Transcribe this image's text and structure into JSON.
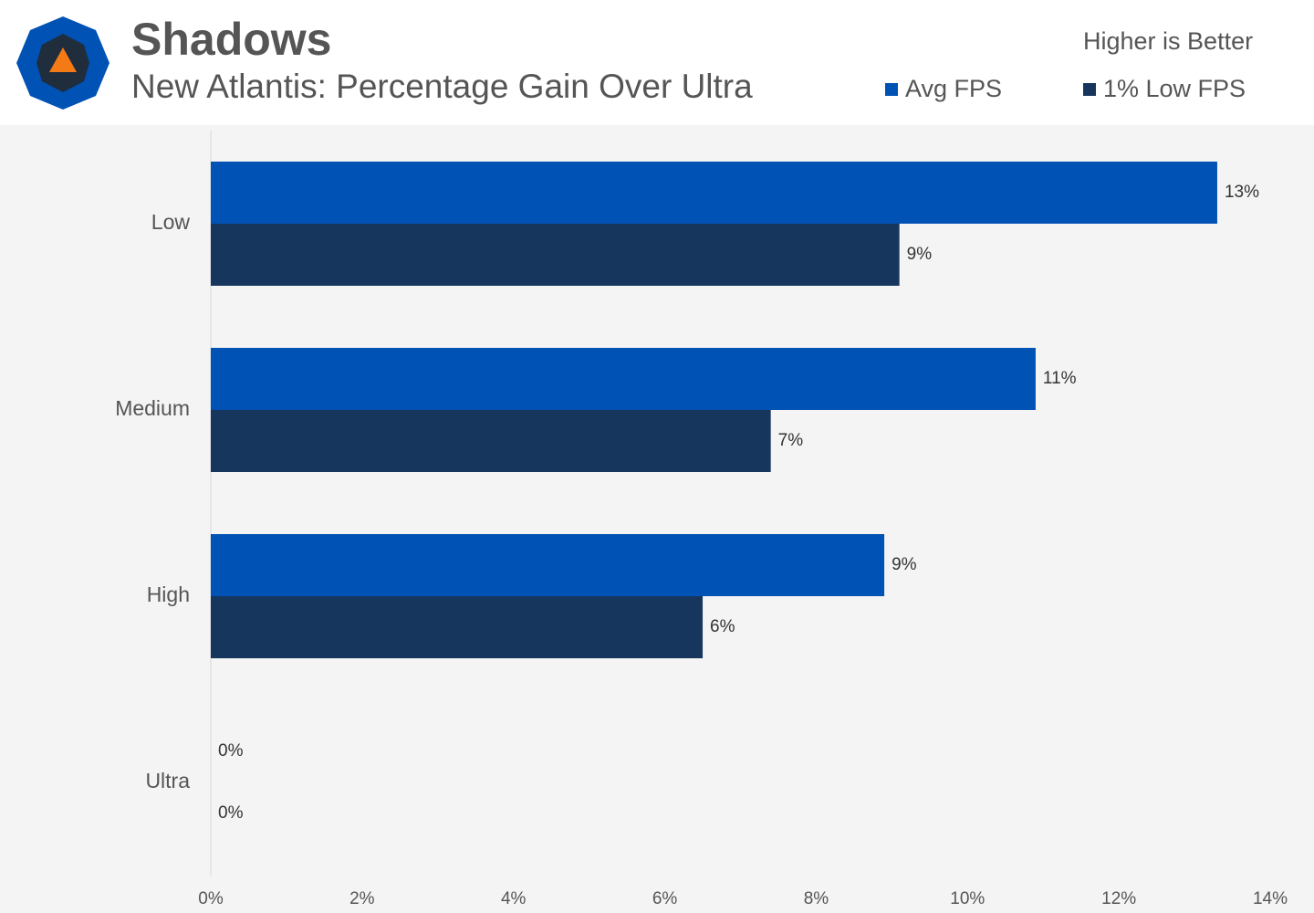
{
  "header": {
    "title": "Shadows",
    "subtitle": "New Atlantis: Percentage Gain Over Ultra",
    "note": "Higher is Better",
    "logo_icon": "techspot-logo-icon"
  },
  "colors": {
    "avg": "#0052b4",
    "low1": "#17365d",
    "axis_text": "#555555",
    "axis_line": "#d9d9d9"
  },
  "chart_data": {
    "type": "bar",
    "orientation": "horizontal",
    "categories": [
      "Low",
      "Medium",
      "High",
      "Ultra"
    ],
    "series": [
      {
        "name": "Avg FPS",
        "values": [
          13.3,
          10.9,
          8.9,
          0
        ],
        "labels": [
          "13%",
          "11%",
          "9%",
          "0%"
        ]
      },
      {
        "name": "1% Low FPS",
        "values": [
          9.1,
          7.4,
          6.5,
          0
        ],
        "labels": [
          "9%",
          "7%",
          "6%",
          "0%"
        ]
      }
    ],
    "xlim": [
      0,
      14
    ],
    "xticks": [
      0,
      2,
      4,
      6,
      8,
      10,
      12,
      14
    ],
    "xtick_labels": [
      "0%",
      "2%",
      "4%",
      "6%",
      "8%",
      "10%",
      "12%",
      "14%"
    ],
    "xlabel": "",
    "ylabel": "",
    "grid": false,
    "legend_position": "top-right"
  }
}
